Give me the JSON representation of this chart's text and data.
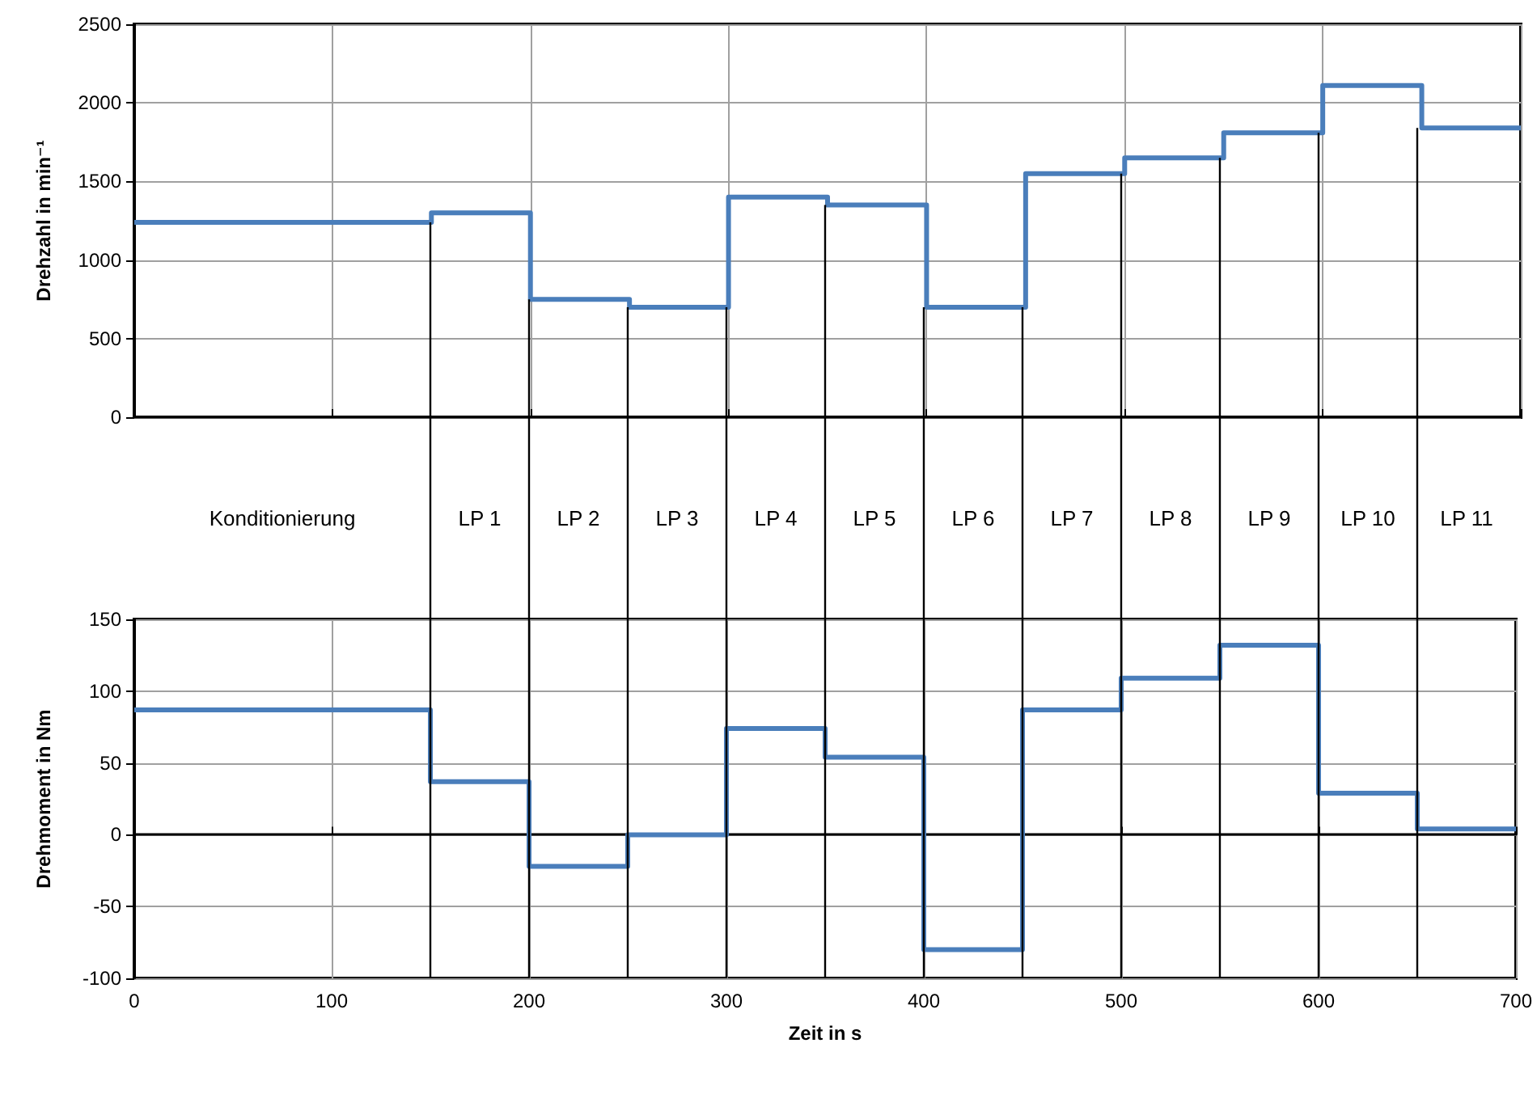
{
  "chart_data": [
    {
      "type": "step",
      "ylabel": "Drehzahl in min⁻¹",
      "x": [
        0,
        150,
        200,
        250,
        300,
        350,
        400,
        450,
        500,
        550,
        600,
        650,
        700
      ],
      "series": [
        {
          "color": "#4a7ebb",
          "values": [
            1240,
            1300,
            750,
            700,
            1400,
            1350,
            700,
            1550,
            1650,
            1810,
            2110,
            1840,
            1840
          ]
        }
      ],
      "xlim": [
        0,
        700
      ],
      "xticks": [
        0,
        100,
        200,
        300,
        400,
        500,
        600,
        700
      ],
      "ylim": [
        0,
        2500
      ],
      "yticks": [
        0,
        500,
        1000,
        1500,
        2000,
        2500
      ],
      "grid": true,
      "tick_labels": "y",
      "marker": "none",
      "line_style": "solid"
    },
    {
      "type": "step",
      "xlabel": "Zeit in s",
      "ylabel": "Drehmoment in Nm",
      "x": [
        0,
        150,
        200,
        250,
        300,
        350,
        400,
        450,
        500,
        550,
        600,
        650,
        700
      ],
      "series": [
        {
          "color": "#4a7ebb",
          "values": [
            87,
            37,
            -22,
            0,
            74,
            54,
            -80,
            87,
            109,
            132,
            29,
            4,
            4
          ]
        }
      ],
      "xlim": [
        0,
        700
      ],
      "xticks": [
        0,
        100,
        200,
        300,
        400,
        500,
        600,
        700
      ],
      "ylim": [
        -100,
        150
      ],
      "yticks": [
        -100,
        -50,
        0,
        50,
        100,
        150
      ],
      "grid": true,
      "marker": "none",
      "line_style": "solid",
      "ref_lines": [
        {
          "axis": "x",
          "value": 150,
          "color": "#000000"
        },
        {
          "axis": "x",
          "value": 200,
          "color": "#000000"
        },
        {
          "axis": "x",
          "value": 250,
          "color": "#000000"
        },
        {
          "axis": "x",
          "value": 300,
          "color": "#000000"
        },
        {
          "axis": "x",
          "value": 350,
          "color": "#000000"
        },
        {
          "axis": "x",
          "value": 400,
          "color": "#000000"
        },
        {
          "axis": "x",
          "value": 450,
          "color": "#000000"
        },
        {
          "axis": "x",
          "value": 500,
          "color": "#000000"
        },
        {
          "axis": "x",
          "value": 550,
          "color": "#000000"
        },
        {
          "axis": "x",
          "value": 600,
          "color": "#000000"
        },
        {
          "axis": "x",
          "value": 650,
          "color": "#000000"
        }
      ],
      "annotations": [
        "Konditionierung",
        "LP 1",
        "LP 2",
        "LP 3",
        "LP 4",
        "LP 5",
        "LP 6",
        "LP 7",
        "LP 8",
        "LP 9",
        "LP 10",
        "LP 11"
      ]
    }
  ]
}
